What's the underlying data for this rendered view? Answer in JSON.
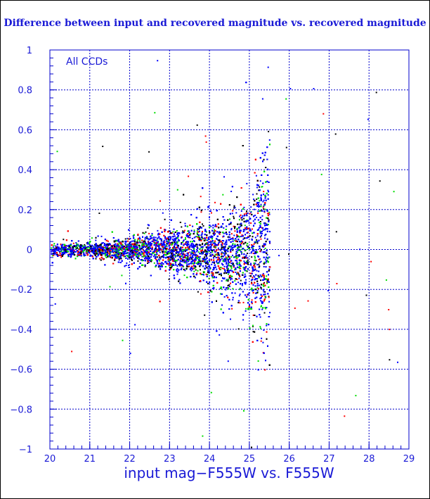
{
  "chart_data": {
    "type": "scatter",
    "title": "Difference between input and recovered magnitude vs. recovered magnitude",
    "xlabel": "input mag−F555W vs. F555W",
    "ylabel": "",
    "annotation": "All CCDs",
    "xlim": [
      20,
      29
    ],
    "ylim": [
      -1,
      1
    ],
    "x_ticks": [
      "20",
      "21",
      "22",
      "23",
      "24",
      "25",
      "26",
      "27",
      "28",
      "29"
    ],
    "y_ticks": [
      "1",
      "0.8",
      "0.6",
      "0.4",
      "0.2",
      "0",
      "−0.2",
      "−0.4",
      "−0.6",
      "−0.8",
      "−1"
    ],
    "grid": true,
    "series_colors": [
      "#000000",
      "#ff0000",
      "#00dd00",
      "#0000ff"
    ],
    "point_density_trend": {
      "x": [
        20.0,
        21.0,
        22.0,
        23.0,
        24.0,
        24.5,
        25.0,
        25.3,
        25.5
      ],
      "y_center": [
        0.0,
        0.0,
        0.0,
        0.0,
        -0.01,
        -0.02,
        -0.02,
        -0.01,
        0.0
      ],
      "y_spread_1sigma": [
        0.015,
        0.02,
        0.03,
        0.05,
        0.08,
        0.11,
        0.16,
        0.22,
        0.28
      ]
    }
  }
}
